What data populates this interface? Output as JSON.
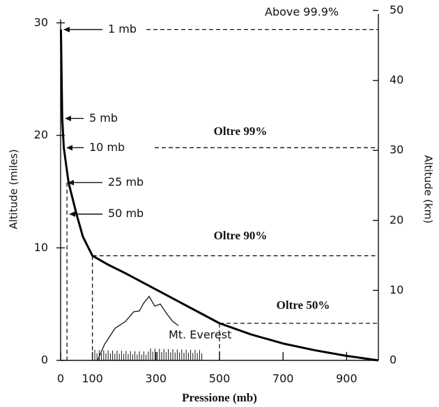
{
  "chart_data": {
    "type": "line",
    "x_label": "Pressione (mb)",
    "y_label": "Altitude (miles)",
    "y2_label": "Altitude (km)",
    "x": [
      1,
      5,
      10,
      25,
      50,
      70,
      100,
      150,
      200,
      300,
      400,
      500,
      600,
      700,
      800,
      900,
      1000
    ],
    "values": [
      29.4,
      21.5,
      18.9,
      15.8,
      13.0,
      11.0,
      9.3,
      8.5,
      7.8,
      6.3,
      4.8,
      3.3,
      2.3,
      1.5,
      0.9,
      0.4,
      0
    ],
    "color": "#000000",
    "xlim": [
      0,
      1000
    ],
    "xticks": [
      0,
      100,
      300,
      500,
      700,
      900
    ],
    "ylim": [
      0,
      31.1
    ],
    "yticks": [
      0,
      10,
      20,
      30
    ],
    "y2lim": [
      0,
      50
    ],
    "y2ticks": [
      0,
      10,
      20,
      30,
      40,
      50
    ],
    "levels": [
      {
        "label": "1 mb",
        "altitude": 29.4
      },
      {
        "label": "5 mb",
        "altitude": 21.5
      },
      {
        "label": "10 mb",
        "altitude": 18.9
      },
      {
        "label": "25 mb",
        "altitude": 15.8
      },
      {
        "label": "50 mb",
        "altitude": 13.0
      }
    ],
    "zones": [
      {
        "label": "Above 99.9%",
        "pressure": 1,
        "altitude": 29.4
      },
      {
        "label": "Oltre 99%",
        "pressure": 10,
        "altitude": 18.9
      },
      {
        "label": "Oltre 90%",
        "pressure": 100,
        "altitude": 9.3
      },
      {
        "label": "Oltre 50%",
        "pressure": 500,
        "altitude": 3.3
      }
    ],
    "mountain_label": "Mt. Everest"
  }
}
